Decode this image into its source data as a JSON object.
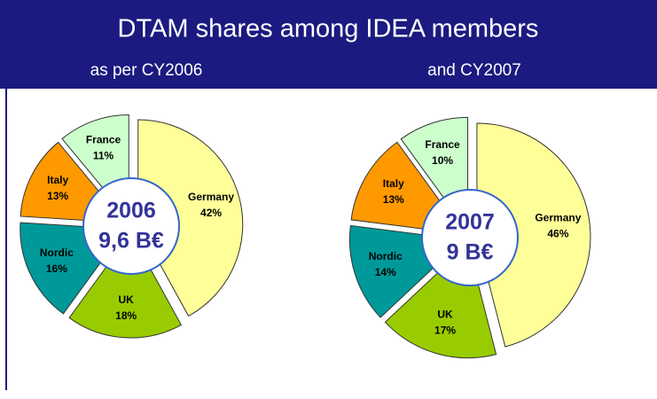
{
  "title": "DTAM shares among IDEA members",
  "chart_data": [
    {
      "type": "pie",
      "subtitle": "as per CY2006",
      "center_label": [
        "2006",
        "9,6 B€"
      ],
      "categories": [
        "Germany",
        "UK",
        "Nordic",
        "Italy",
        "France"
      ],
      "values": [
        42,
        18,
        16,
        13,
        11
      ],
      "value_labels": [
        "42%",
        "18%",
        "16%",
        "13%",
        "11%"
      ],
      "colors": [
        "#ffff99",
        "#99cc00",
        "#009999",
        "#ff9900",
        "#ccffcc"
      ]
    },
    {
      "type": "pie",
      "subtitle": "and CY2007",
      "center_label": [
        "2007",
        "9 B€"
      ],
      "categories": [
        "Germany",
        "UK",
        "Nordic",
        "Italy",
        "France"
      ],
      "values": [
        46,
        17,
        14,
        13,
        10
      ],
      "value_labels": [
        "46%",
        "17%",
        "14%",
        "13%",
        "10%"
      ],
      "colors": [
        "#ffff99",
        "#99cc00",
        "#009999",
        "#ff9900",
        "#ccffcc"
      ]
    }
  ]
}
